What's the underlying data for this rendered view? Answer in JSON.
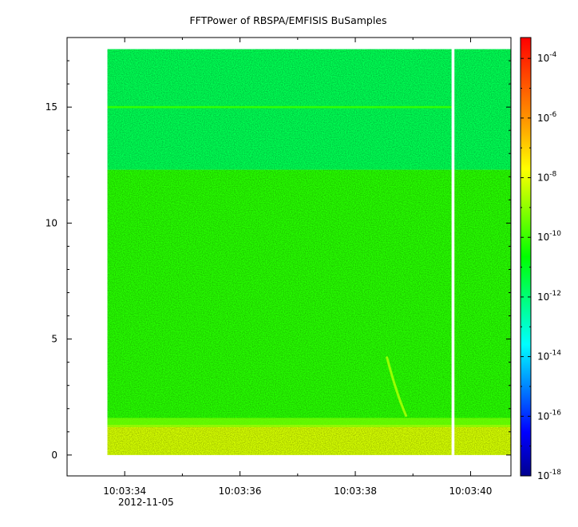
{
  "chart_data": {
    "type": "heatmap",
    "title": "FFTPower of RBSPA/EMFISIS  BuSamples",
    "xlabel": "",
    "ylabel": "",
    "x_axis": {
      "kind": "time",
      "date_label": "2012-11-05",
      "range": [
        "10:03:33.0",
        "10:03:40.7"
      ],
      "major_ticks": [
        "10:03:34",
        "10:03:36",
        "10:03:38",
        "10:03:40"
      ],
      "minor_ticks": [
        "10:03:33",
        "10:03:35",
        "10:03:37",
        "10:03:39"
      ]
    },
    "y_axis": {
      "range": [
        -0.9,
        18.0
      ],
      "major_ticks": [
        0,
        5,
        10,
        15
      ],
      "minor_ticks": [
        1,
        2,
        3,
        4,
        6,
        7,
        8,
        9,
        11,
        12,
        13,
        14,
        16,
        17
      ]
    },
    "colorbar": {
      "scale": "log",
      "range_exponent": [
        -18,
        -3.3
      ],
      "tick_exponents": [
        -18,
        -16,
        -14,
        -12,
        -10,
        -8,
        -6,
        -4
      ],
      "colors": [
        "#00008f",
        "#0000ff",
        "#0080ff",
        "#00ffff",
        "#00ff80",
        "#00ff00",
        "#80ff00",
        "#ffff00",
        "#ffa000",
        "#ff5000",
        "#ff0000"
      ]
    },
    "data_extent": {
      "x_start": "10:03:33.7",
      "x_end": "10:03:40.7",
      "y_top": 17.5,
      "y_bottom": 0.0
    },
    "gap": {
      "x_start": "10:03:39.67",
      "x_end": "10:03:39.72"
    },
    "bands": [
      {
        "y_from": 12.3,
        "y_to": 17.5,
        "log10_power": -11.6
      },
      {
        "y_from": 1.3,
        "y_to": 12.3,
        "log10_power": -10.2
      },
      {
        "y_from": 0.0,
        "y_to": 1.3,
        "log10_power": -8.2
      }
    ],
    "features": [
      {
        "kind": "narrowband-line",
        "y": 15.0,
        "log10_power": -10.1,
        "x_from": "10:03:33.7",
        "x_to": "10:03:39.67"
      },
      {
        "kind": "chirp",
        "points": [
          [
            "10:03:38.55",
            4.2
          ],
          [
            "10:03:38.72",
            2.6
          ],
          [
            "10:03:38.88",
            1.7
          ]
        ],
        "log10_power": -8.9
      }
    ]
  }
}
